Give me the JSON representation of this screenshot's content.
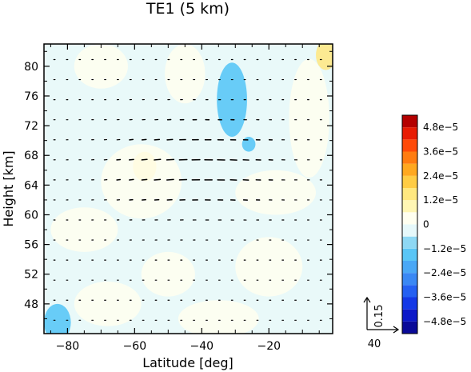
{
  "chart_data": {
    "type": "heatmap",
    "title": "TE1 (5 km)",
    "xlabel": "Latitude [deg]",
    "ylabel": "Height [km]",
    "xlim": [
      -87,
      -1
    ],
    "ylim": [
      44,
      83
    ],
    "xticks": [
      -80,
      -60,
      -40,
      -20
    ],
    "xtick_labels": [
      "−80",
      "−60",
      "−40",
      "−20"
    ],
    "yticks": [
      48,
      52,
      56,
      60,
      64,
      68,
      72,
      76,
      80
    ],
    "ytick_labels": [
      "48",
      "52",
      "56",
      "60",
      "64",
      "68",
      "72",
      "76",
      "80"
    ],
    "grid": false,
    "fill_description": "near-zero values, mostly between -1.2e-5 and 1.2e-5",
    "regions": [
      {
        "shape": "ellipse",
        "lat": -31,
        "height": 75.5,
        "rlat": 4.5,
        "rheight": 5,
        "value": -1.6e-05
      },
      {
        "shape": "ellipse",
        "lat": -26,
        "height": 69.5,
        "rlat": 2,
        "rheight": 1,
        "value": -1.4e-05
      },
      {
        "shape": "ellipse",
        "lat": -83,
        "height": 45.5,
        "rlat": 4,
        "rheight": 2.5,
        "value": -1.3e-05
      },
      {
        "shape": "ellipse",
        "lat": -57,
        "height": 66.5,
        "rlat": 3.5,
        "rheight": 2,
        "value": 1.4e-05
      },
      {
        "shape": "ellipse",
        "lat": -3,
        "height": 81.5,
        "rlat": 3,
        "rheight": 2,
        "value": 1.4e-05
      },
      {
        "shape": "ellipse",
        "lat": -70,
        "height": 80,
        "rlat": 8,
        "rheight": 3,
        "value": 5e-06
      },
      {
        "shape": "ellipse",
        "lat": -45,
        "height": 79,
        "rlat": 6,
        "rheight": 4,
        "value": 5e-06
      },
      {
        "shape": "ellipse",
        "lat": -8,
        "height": 73,
        "rlat": 6,
        "rheight": 8,
        "value": 5e-06
      },
      {
        "shape": "ellipse",
        "lat": -58,
        "height": 64.5,
        "rlat": 12,
        "rheight": 5,
        "value": 5e-06
      },
      {
        "shape": "ellipse",
        "lat": -18,
        "height": 63,
        "rlat": 12,
        "rheight": 3,
        "value": 5e-06
      },
      {
        "shape": "ellipse",
        "lat": -75,
        "height": 58,
        "rlat": 10,
        "rheight": 3,
        "value": 5e-06
      },
      {
        "shape": "ellipse",
        "lat": -50,
        "height": 52,
        "rlat": 8,
        "rheight": 3,
        "value": 5e-06
      },
      {
        "shape": "ellipse",
        "lat": -20,
        "height": 53,
        "rlat": 10,
        "rheight": 4,
        "value": 5e-06
      },
      {
        "shape": "ellipse",
        "lat": -68,
        "height": 48,
        "rlat": 10,
        "rheight": 3,
        "value": 5e-06
      },
      {
        "shape": "ellipse",
        "lat": -35,
        "height": 46,
        "rlat": 12,
        "rheight": 2.5,
        "value": 5e-06
      }
    ],
    "vectors": {
      "lat_start": -84,
      "lat_step": 3.78,
      "lat_count": 22,
      "height_start": 45.8,
      "height_step": 2.7,
      "height_count": 14,
      "jet_center": {
        "lat": -42,
        "height": 66.5,
        "rlat": 22,
        "rheight": 6
      },
      "max_u": 1.8,
      "background_u": 0.35,
      "w_scale": 0.35
    },
    "colorbar": {
      "levels": [
        -5.4e-05,
        -4.8e-05,
        -4.2e-05,
        -3.6e-05,
        -3e-05,
        -2.4e-05,
        -1.8e-05,
        -1.2e-05,
        -6e-06,
        0,
        6e-06,
        1.2e-05,
        1.8e-05,
        2.4e-05,
        3e-05,
        3.6e-05,
        4.2e-05,
        4.8e-05,
        5.4e-05
      ],
      "colors": [
        "#0a0a98",
        "#0c18c8",
        "#1438e6",
        "#2460f2",
        "#3a88f4",
        "#4aa8f6",
        "#5ac6f6",
        "#8ed8f4",
        "#e6f8fa",
        "#fffff0",
        "#fff6b4",
        "#ffe880",
        "#ffcc44",
        "#ffa820",
        "#ff7c10",
        "#ff4a08",
        "#e81c04",
        "#b40000"
      ],
      "tick_labels": [
        {
          "value": -4.8e-05,
          "label": "−4.8e−5"
        },
        {
          "value": -3.6e-05,
          "label": "−3.6e−5"
        },
        {
          "value": -2.4e-05,
          "label": "−2.4e−5"
        },
        {
          "value": -1.2e-05,
          "label": "−1.2e−5"
        },
        {
          "value": 0,
          "label": "0"
        },
        {
          "value": 1.2e-05,
          "label": "1.2e−5"
        },
        {
          "value": 2.4e-05,
          "label": "2.4e−5"
        },
        {
          "value": 3.6e-05,
          "label": "3.6e−5"
        },
        {
          "value": 4.8e-05,
          "label": "4.8e−5"
        }
      ]
    },
    "reference_vector": {
      "u_label": "40",
      "w_label": "0.15"
    }
  }
}
